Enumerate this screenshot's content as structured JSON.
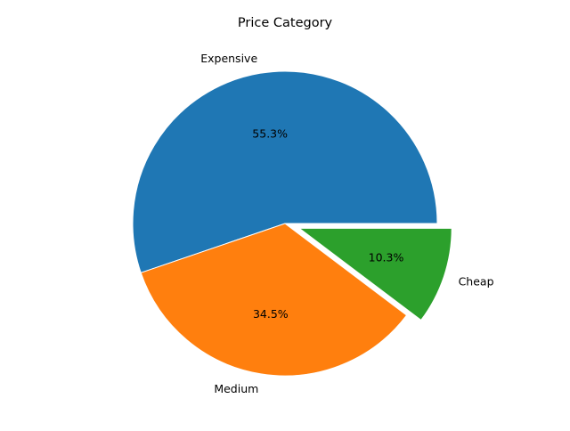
{
  "chart_data": {
    "type": "pie",
    "title": "Price Category",
    "categories": [
      "Expensive",
      "Medium",
      "Cheap"
    ],
    "values": [
      55.3,
      34.5,
      10.3
    ],
    "percent_labels": [
      "55.3%",
      "34.5%",
      "10.3%"
    ],
    "colors": [
      "#1f77b4",
      "#ff7f0e",
      "#2ca02c"
    ],
    "exploded": [
      false,
      false,
      true
    ],
    "start_angle_deg": 0,
    "direction": "counterclockwise",
    "legend": "none"
  }
}
